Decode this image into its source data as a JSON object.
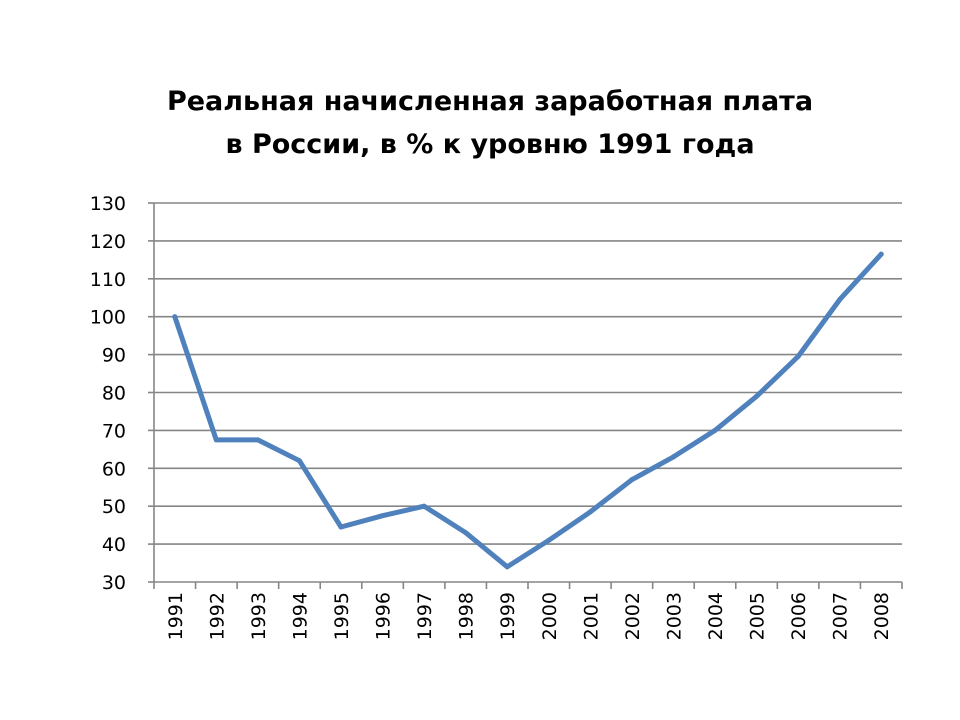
{
  "chart_data": {
    "type": "line",
    "title_lines": [
      "Реальная начисленная заработная плата",
      "в России, в % к уровню 1991 года"
    ],
    "xlabel": "",
    "ylabel": "",
    "categories": [
      "1991",
      "1992",
      "1993",
      "1994",
      "1995",
      "1996",
      "1997",
      "1998",
      "1999",
      "2000",
      "2001",
      "2002",
      "2003",
      "2004",
      "2005",
      "2006",
      "2007",
      "2008"
    ],
    "series": [
      {
        "values": [
          100,
          67.5,
          67.5,
          62,
          44.5,
          47.5,
          50,
          43,
          34,
          41,
          48.5,
          57,
          63,
          70,
          79,
          89.5,
          104.5,
          116.5
        ]
      }
    ],
    "ylim": [
      30,
      130
    ],
    "yticks": [
      30,
      40,
      50,
      60,
      70,
      80,
      90,
      100,
      110,
      120,
      130
    ],
    "grid": true,
    "legend": "none",
    "colors": {
      "line": "#4f81bd",
      "grid": "#868686",
      "axis": "#868686"
    }
  }
}
